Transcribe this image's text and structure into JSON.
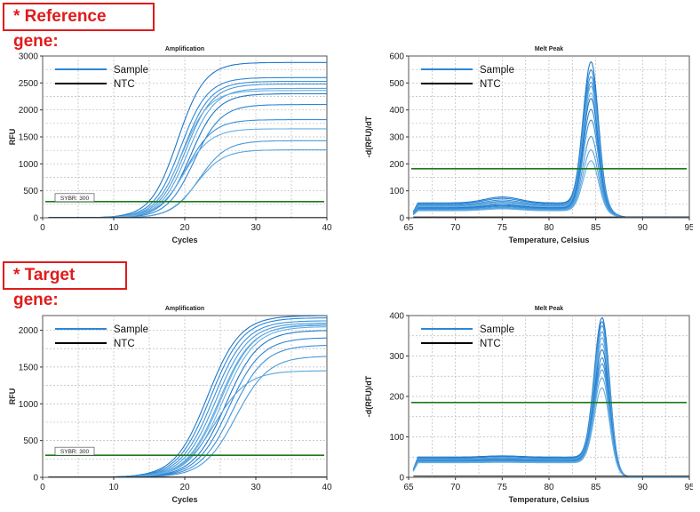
{
  "sections": {
    "reference_label": "* Reference gene:",
    "target_label": "* Target gene:"
  },
  "colors": {
    "sample": "#2d86d6",
    "ntc": "#000000",
    "threshold": "#1a7a1a",
    "label_border": "#e01b1b"
  },
  "chart_data": [
    {
      "id": "ref_amp",
      "type": "line",
      "title": "Amplification",
      "xlabel": "Cycles",
      "ylabel": "RFU",
      "xlim": [
        0,
        40
      ],
      "ylim": [
        0,
        3000
      ],
      "xticks": [
        0,
        10,
        20,
        30,
        40
      ],
      "yticks": [
        0,
        500,
        1000,
        1500,
        2000,
        2500,
        3000
      ],
      "grid": true,
      "legend": {
        "position": "top-left",
        "entries": [
          {
            "name": "Sample",
            "color": "#2d86d6"
          },
          {
            "name": "NTC",
            "color": "#000000"
          }
        ]
      },
      "threshold": {
        "value": 300,
        "label": "SYBR: 300"
      },
      "curves": {
        "midpoints": [
          19.0,
          19.4,
          19.8,
          20.1,
          20.4,
          19.6,
          20.8,
          21.3,
          20.2,
          22.0,
          21.6,
          19.9
        ],
        "plateaus": [
          2880,
          2600,
          2530,
          2480,
          2400,
          2360,
          2300,
          2100,
          1820,
          1430,
          1260,
          1650
        ],
        "slope": 1.9
      }
    },
    {
      "id": "ref_melt",
      "type": "line",
      "title": "Melt Peak",
      "xlabel": "Temperature, Celsius",
      "ylabel": "-d(RFU)/dT",
      "xlim": [
        65,
        95
      ],
      "ylim": [
        0,
        600
      ],
      "xticks": [
        65,
        70,
        75,
        80,
        85,
        90,
        95
      ],
      "yticks": [
        0,
        100,
        200,
        300,
        400,
        500,
        600
      ],
      "grid": true,
      "legend": {
        "position": "top-left",
        "entries": [
          {
            "name": "Sample",
            "color": "#2d86d6"
          },
          {
            "name": "NTC",
            "color": "#000000"
          }
        ]
      },
      "threshold": {
        "value": 182
      },
      "curves": {
        "peak_temperature": 84.5,
        "peak_heights": [
          575,
          545,
          520,
          500,
          485,
          460,
          440,
          400,
          360,
          300,
          250,
          210
        ],
        "baseline_levels": [
          55,
          52,
          48,
          45,
          42,
          40,
          37,
          35,
          33,
          30,
          28,
          26
        ],
        "bump_temperature": 75,
        "bump_heights": [
          22,
          20,
          18,
          16,
          15,
          14,
          12,
          10,
          9,
          8,
          8,
          7
        ]
      }
    },
    {
      "id": "tgt_amp",
      "type": "line",
      "title": "Amplification",
      "xlabel": "Cycles",
      "ylabel": "RFU",
      "xlim": [
        0,
        40
      ],
      "ylim": [
        0,
        2200
      ],
      "xticks": [
        0,
        10,
        20,
        30,
        40
      ],
      "yticks": [
        0,
        500,
        1000,
        1500,
        2000
      ],
      "grid": true,
      "legend": {
        "position": "top-left",
        "entries": [
          {
            "name": "Sample",
            "color": "#2d86d6"
          },
          {
            "name": "NTC",
            "color": "#000000"
          }
        ]
      },
      "threshold": {
        "value": 300,
        "label": "SYBR: 300"
      },
      "curves": {
        "midpoints": [
          23.2,
          23.6,
          24.0,
          24.4,
          24.8,
          25.3,
          25.8,
          26.2,
          26.7,
          27.2,
          24.2,
          25.0
        ],
        "plateaus": [
          2200,
          2170,
          2130,
          2100,
          2070,
          2050,
          2000,
          1900,
          1800,
          1650,
          1450,
          2080
        ],
        "slope": 2.3
      }
    },
    {
      "id": "tgt_melt",
      "type": "line",
      "title": "Melt Peak",
      "xlabel": "Temperature, Celsius",
      "ylabel": "-d(RFU)/dT",
      "xlim": [
        65,
        95
      ],
      "ylim": [
        0,
        400
      ],
      "xticks": [
        65,
        70,
        75,
        80,
        85,
        90,
        95
      ],
      "yticks": [
        0,
        100,
        200,
        300,
        400
      ],
      "grid": true,
      "legend": {
        "position": "top-left",
        "entries": [
          {
            "name": "Sample",
            "color": "#2d86d6"
          },
          {
            "name": "NTC",
            "color": "#000000"
          }
        ]
      },
      "threshold": {
        "value": 185
      },
      "curves": {
        "peak_temperature": 85.7,
        "peak_heights": [
          400,
          390,
          380,
          365,
          350,
          335,
          320,
          300,
          285,
          270,
          250,
          225
        ],
        "baseline_levels": [
          50,
          48,
          46,
          45,
          44,
          43,
          42,
          41,
          40,
          39,
          38,
          36
        ],
        "bump_temperature": 75,
        "bump_heights": [
          3,
          3,
          2,
          2,
          2,
          2,
          2,
          2,
          1,
          1,
          1,
          1
        ]
      }
    }
  ]
}
